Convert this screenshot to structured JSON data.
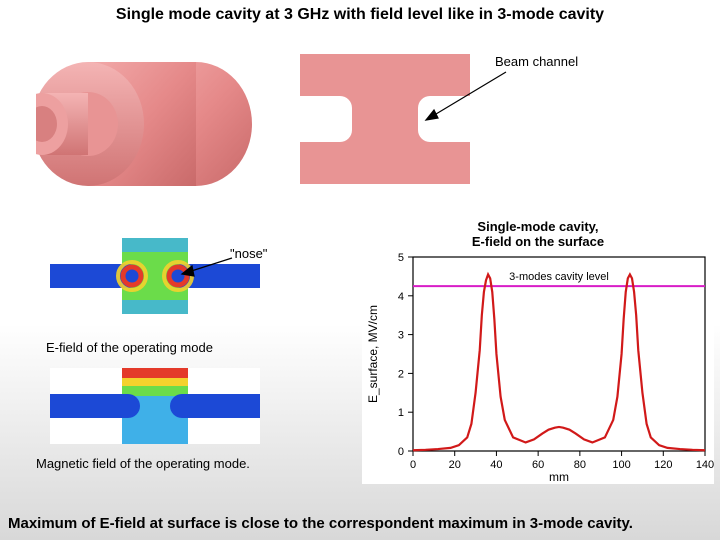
{
  "title": "Single mode cavity at 3 GHz with field level like in 3-mode cavity",
  "conclusion": "Maximum of E-field at surface is close to the correspondent maximum in 3-mode cavity.",
  "annotations": {
    "beam_channel": "Beam channel",
    "nose": "\"nose\""
  },
  "captions": {
    "efield": "E-field of the operating mode",
    "bfield": "Magnetic field of the operating mode."
  },
  "cavity_color": "#e58989",
  "fieldmap": {
    "bg": "#ffffff",
    "body": "#1c49d6",
    "cavity": "#6bdc4a",
    "hot": "#e43a2a",
    "mid": "#f4d22c",
    "cool": "#3fb0e8"
  },
  "chart": {
    "title": "Single-mode cavity,\nE-field on the surface",
    "xlabel": "mm",
    "ylabel": "E_surface, MV/cm",
    "xlim": [
      0,
      140
    ],
    "ylim": [
      0,
      5
    ],
    "xticks": [
      0,
      20,
      40,
      60,
      80,
      100,
      120,
      140
    ],
    "yticks": [
      0,
      1,
      2,
      3,
      4,
      5
    ],
    "reference_level": 4.25,
    "reference_label": "3-modes cavity level",
    "reference_color": "#d81cc7",
    "line_color": "#d11919",
    "line_width": 2.2,
    "axis_color": "#000000",
    "tick_fontsize": 11,
    "label_fontsize": 12,
    "title_fontsize": 13,
    "background_color": "#ffffff",
    "series": [
      [
        0,
        0.02
      ],
      [
        6,
        0.03
      ],
      [
        12,
        0.05
      ],
      [
        18,
        0.08
      ],
      [
        22,
        0.15
      ],
      [
        26,
        0.35
      ],
      [
        28,
        0.7
      ],
      [
        30,
        1.5
      ],
      [
        32,
        2.6
      ],
      [
        33,
        3.5
      ],
      [
        34,
        4.1
      ],
      [
        35,
        4.4
      ],
      [
        36,
        4.55
      ],
      [
        37,
        4.45
      ],
      [
        38,
        4.1
      ],
      [
        39,
        3.4
      ],
      [
        40,
        2.5
      ],
      [
        42,
        1.4
      ],
      [
        44,
        0.8
      ],
      [
        48,
        0.35
      ],
      [
        54,
        0.22
      ],
      [
        58,
        0.3
      ],
      [
        62,
        0.45
      ],
      [
        65,
        0.55
      ],
      [
        68,
        0.6
      ],
      [
        70,
        0.62
      ],
      [
        72,
        0.6
      ],
      [
        75,
        0.55
      ],
      [
        78,
        0.45
      ],
      [
        82,
        0.3
      ],
      [
        86,
        0.22
      ],
      [
        92,
        0.35
      ],
      [
        96,
        0.8
      ],
      [
        98,
        1.4
      ],
      [
        100,
        2.5
      ],
      [
        101,
        3.4
      ],
      [
        102,
        4.1
      ],
      [
        103,
        4.45
      ],
      [
        104,
        4.55
      ],
      [
        105,
        4.45
      ],
      [
        106,
        4.1
      ],
      [
        107,
        3.5
      ],
      [
        108,
        2.6
      ],
      [
        110,
        1.5
      ],
      [
        112,
        0.7
      ],
      [
        114,
        0.35
      ],
      [
        118,
        0.15
      ],
      [
        122,
        0.08
      ],
      [
        128,
        0.05
      ],
      [
        134,
        0.03
      ],
      [
        140,
        0.02
      ]
    ]
  }
}
